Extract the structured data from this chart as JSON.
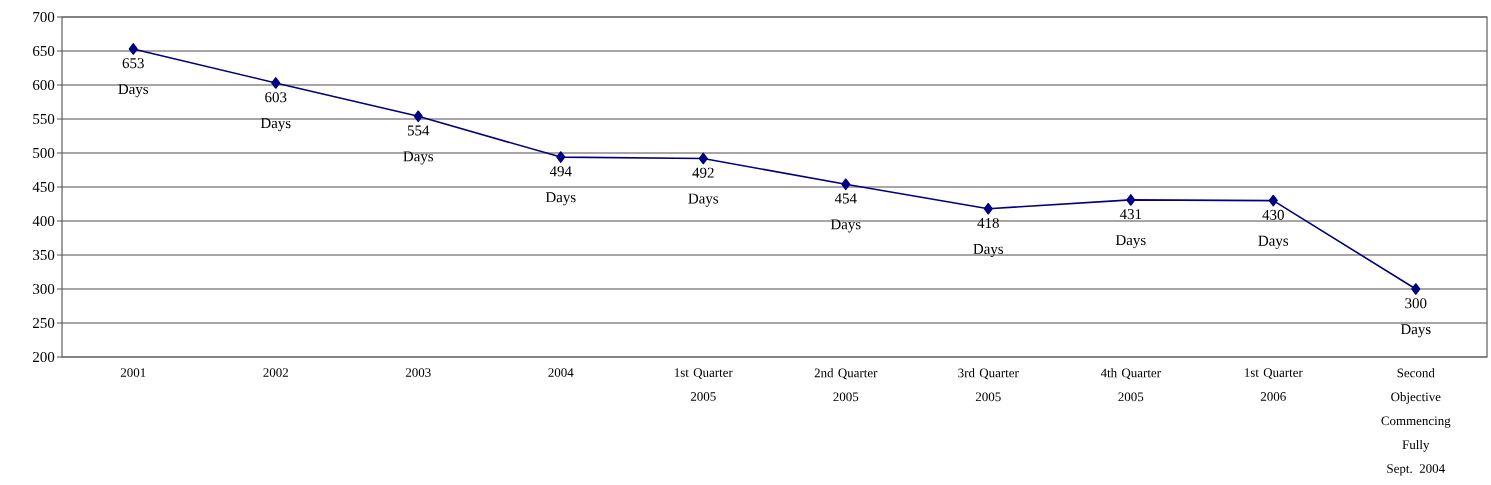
{
  "chart_data": {
    "type": "line",
    "categories": [
      "2001",
      "2002",
      "2003",
      "2004",
      "1st Quarter 2005",
      "2nd Quarter 2005",
      "3rd Quarter 2005",
      "4th Quarter 2005",
      "1st Quarter 2006",
      "Second Objective Commencing Fully Sept. 2004"
    ],
    "values": [
      653,
      603,
      554,
      494,
      492,
      454,
      418,
      431,
      430,
      300
    ],
    "value_labels": [
      "653 Days",
      "603 Days",
      "554 Days",
      "494 Days",
      "492 Days",
      "454 Days",
      "418 Days",
      "431 Days",
      "430 Days",
      "300 Days"
    ],
    "color": "#000080",
    "ylim": [
      200,
      700
    ],
    "yticks": [
      200,
      250,
      300,
      350,
      400,
      450,
      500,
      550,
      600,
      650,
      700
    ],
    "grid": "y",
    "marker": "diamond",
    "line_style": "solid"
  }
}
